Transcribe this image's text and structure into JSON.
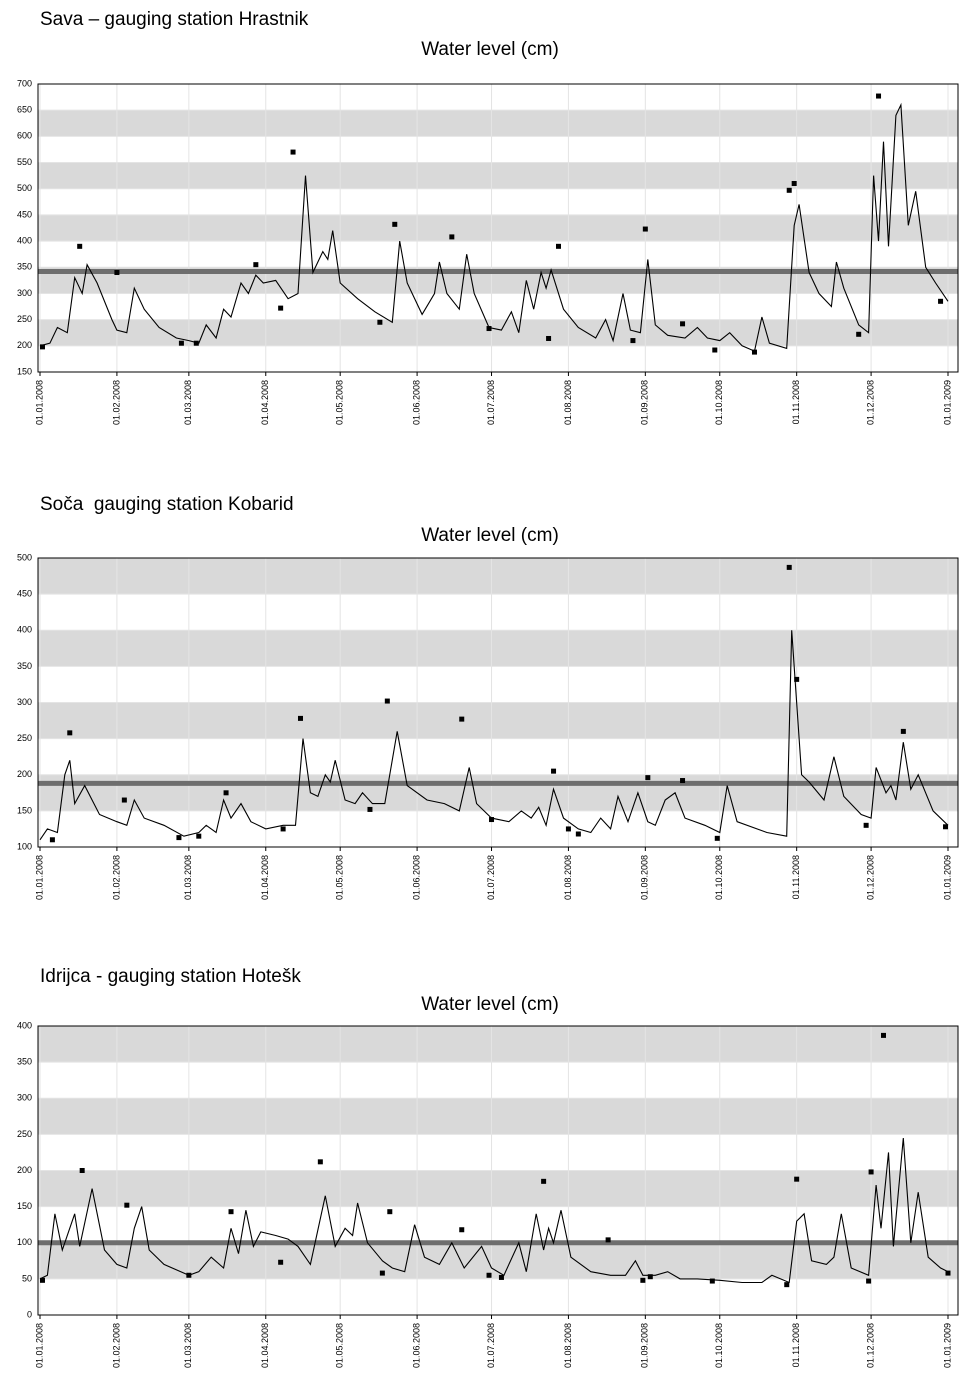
{
  "chart_data": [
    {
      "type": "line",
      "title": "Sava – gauging station Hrastnik",
      "subtitle": "Water level (cm)",
      "xlim": [
        "01.01.2008",
        "01.01.2009"
      ],
      "xticks": [
        "01.01.2008",
        "01.02.2008",
        "01.03.2008",
        "01.04.2008",
        "01.05.2008",
        "01.06.2008",
        "01.07.2008",
        "01.08.2008",
        "01.09.2008",
        "01.10.2008",
        "01.11.2008",
        "01.12.2008",
        "01.01.2009"
      ],
      "ylim": [
        150,
        700
      ],
      "yticks": [
        150,
        200,
        250,
        300,
        350,
        400,
        450,
        500,
        550,
        600,
        650,
        700
      ],
      "grid": true,
      "band_color": "#d9d9d9",
      "reference_line": {
        "value": 342,
        "color": "#6e6e6e"
      },
      "series": [
        {
          "type": "line",
          "color": "#000000",
          "x": [
            "01.01.2008",
            "05.01.2008",
            "08.01.2008",
            "12.01.2008",
            "15.01.2008",
            "18.01.2008",
            "20.01.2008",
            "24.01.2008",
            "30.01.2008",
            "01.02.2008",
            "05.02.2008",
            "08.02.2008",
            "12.02.2008",
            "18.02.2008",
            "25.02.2008",
            "01.03.2008",
            "05.03.2008",
            "08.03.2008",
            "12.03.2008",
            "15.03.2008",
            "18.03.2008",
            "22.03.2008",
            "25.03.2008",
            "28.03.2008",
            "31.03.2008",
            "05.04.2008",
            "10.04.2008",
            "14.04.2008",
            "17.04.2008",
            "20.04.2008",
            "24.04.2008",
            "26.04.2008",
            "28.04.2008",
            "01.05.2008",
            "08.05.2008",
            "15.05.2008",
            "22.05.2008",
            "25.05.2008",
            "28.05.2008",
            "03.06.2008",
            "08.06.2008",
            "10.06.2008",
            "13.06.2008",
            "18.06.2008",
            "21.06.2008",
            "24.06.2008",
            "30.06.2008",
            "05.07.2008",
            "09.07.2008",
            "12.07.2008",
            "15.07.2008",
            "18.07.2008",
            "21.07.2008",
            "23.07.2008",
            "25.07.2008",
            "30.07.2008",
            "05.08.2008",
            "12.08.2008",
            "16.08.2008",
            "19.08.2008",
            "23.08.2008",
            "26.08.2008",
            "30.08.2008",
            "02.09.2008",
            "05.09.2008",
            "10.09.2008",
            "17.09.2008",
            "22.09.2008",
            "26.09.2008",
            "01.10.2008",
            "05.10.2008",
            "10.10.2008",
            "15.10.2008",
            "18.10.2008",
            "21.10.2008",
            "28.10.2008",
            "31.10.2008",
            "02.11.2008",
            "06.11.2008",
            "10.11.2008",
            "15.11.2008",
            "17.11.2008",
            "20.11.2008",
            "26.11.2008",
            "30.11.2008",
            "02.12.2008",
            "04.12.2008",
            "06.12.2008",
            "08.12.2008",
            "11.12.2008",
            "13.12.2008",
            "16.12.2008",
            "19.12.2008",
            "23.12.2008",
            "27.12.2008",
            "01.01.2009"
          ],
          "values": [
            200,
            205,
            235,
            225,
            330,
            300,
            355,
            320,
            250,
            230,
            225,
            310,
            270,
            235,
            215,
            210,
            205,
            240,
            215,
            270,
            255,
            320,
            300,
            335,
            320,
            325,
            290,
            300,
            525,
            340,
            380,
            365,
            420,
            320,
            290,
            265,
            245,
            400,
            320,
            260,
            300,
            360,
            300,
            270,
            375,
            300,
            235,
            230,
            265,
            225,
            325,
            270,
            340,
            310,
            345,
            270,
            235,
            215,
            250,
            210,
            300,
            230,
            225,
            365,
            240,
            220,
            215,
            235,
            215,
            210,
            225,
            200,
            190,
            255,
            205,
            195,
            430,
            470,
            340,
            300,
            275,
            360,
            310,
            240,
            225,
            525,
            400,
            590,
            390,
            640,
            660,
            430,
            495,
            350,
            320,
            285
          ]
        },
        {
          "type": "scatter",
          "color": "#000000",
          "x": [
            "02.01.2008",
            "17.01.2008",
            "01.02.2008",
            "27.02.2008",
            "04.03.2008",
            "28.03.2008",
            "07.04.2008",
            "12.04.2008",
            "17.05.2008",
            "23.05.2008",
            "15.06.2008",
            "30.06.2008",
            "24.07.2008",
            "28.07.2008",
            "27.08.2008",
            "01.09.2008",
            "16.09.2008",
            "29.09.2008",
            "15.10.2008",
            "29.10.2008",
            "31.10.2008",
            "26.11.2008",
            "04.12.2008",
            "29.12.2008"
          ],
          "values": [
            198,
            390,
            340,
            205,
            205,
            355,
            272,
            570,
            245,
            432,
            408,
            233,
            214,
            390,
            210,
            423,
            242,
            192,
            188,
            497,
            510,
            222,
            677,
            285
          ]
        }
      ]
    },
    {
      "type": "line",
      "title": "Soča  gauging station Kobarid",
      "subtitle": "Water level (cm)",
      "xlim": [
        "01.01.2008",
        "01.01.2009"
      ],
      "xticks": [
        "01.01.2008",
        "01.02.2008",
        "01.03.2008",
        "01.04.2008",
        "01.05.2008",
        "01.06.2008",
        "01.07.2008",
        "01.08.2008",
        "01.09.2008",
        "01.10.2008",
        "01.11.2008",
        "01.12.2008",
        "01.01.2009"
      ],
      "ylim": [
        100,
        500
      ],
      "yticks": [
        100,
        150,
        200,
        250,
        300,
        350,
        400,
        450,
        500
      ],
      "grid": true,
      "band_color": "#d9d9d9",
      "reference_line": {
        "value": 188,
        "color": "#6e6e6e"
      },
      "series": [
        {
          "type": "line",
          "color": "#000000",
          "x": [
            "01.01.2008",
            "04.01.2008",
            "08.01.2008",
            "11.01.2008",
            "13.01.2008",
            "15.01.2008",
            "19.01.2008",
            "25.01.2008",
            "01.02.2008",
            "05.02.2008",
            "08.02.2008",
            "12.02.2008",
            "20.02.2008",
            "28.02.2008",
            "05.03.2008",
            "08.03.2008",
            "12.03.2008",
            "15.03.2008",
            "18.03.2008",
            "22.03.2008",
            "26.03.2008",
            "01.04.2008",
            "08.04.2008",
            "13.04.2008",
            "16.04.2008",
            "19.04.2008",
            "22.04.2008",
            "25.04.2008",
            "27.04.2008",
            "29.04.2008",
            "03.05.2008",
            "07.05.2008",
            "10.05.2008",
            "14.05.2008",
            "19.05.2008",
            "24.05.2008",
            "28.05.2008",
            "05.06.2008",
            "12.06.2008",
            "18.06.2008",
            "22.06.2008",
            "25.06.2008",
            "01.07.2008",
            "08.07.2008",
            "13.07.2008",
            "17.07.2008",
            "20.07.2008",
            "23.07.2008",
            "26.07.2008",
            "30.07.2008",
            "05.08.2008",
            "10.08.2008",
            "14.08.2008",
            "18.08.2008",
            "21.08.2008",
            "25.08.2008",
            "29.08.2008",
            "02.09.2008",
            "05.09.2008",
            "09.09.2008",
            "13.09.2008",
            "17.09.2008",
            "25.09.2008",
            "01.10.2008",
            "04.10.2008",
            "08.10.2008",
            "20.10.2008",
            "28.10.2008",
            "30.10.2008",
            "03.11.2008",
            "06.11.2008",
            "12.11.2008",
            "16.11.2008",
            "20.11.2008",
            "27.11.2008",
            "01.12.2008",
            "03.12.2008",
            "07.12.2008",
            "09.12.2008",
            "11.12.2008",
            "14.12.2008",
            "17.12.2008",
            "20.12.2008",
            "26.12.2008",
            "01.01.2009"
          ],
          "values": [
            110,
            125,
            120,
            200,
            220,
            160,
            185,
            145,
            135,
            130,
            165,
            140,
            130,
            115,
            120,
            130,
            120,
            165,
            140,
            160,
            135,
            125,
            130,
            130,
            250,
            175,
            170,
            200,
            190,
            220,
            165,
            160,
            175,
            160,
            160,
            260,
            185,
            165,
            160,
            150,
            210,
            160,
            140,
            135,
            150,
            140,
            155,
            130,
            180,
            140,
            125,
            120,
            140,
            125,
            170,
            135,
            175,
            135,
            130,
            165,
            175,
            140,
            130,
            120,
            185,
            135,
            120,
            115,
            400,
            200,
            190,
            165,
            225,
            170,
            145,
            140,
            210,
            175,
            185,
            165,
            245,
            180,
            200,
            150,
            130
          ]
        },
        {
          "type": "scatter",
          "color": "#000000",
          "x": [
            "06.01.2008",
            "13.01.2008",
            "04.02.2008",
            "26.02.2008",
            "05.03.2008",
            "16.03.2008",
            "08.04.2008",
            "15.04.2008",
            "13.05.2008",
            "20.05.2008",
            "19.06.2008",
            "01.07.2008",
            "26.07.2008",
            "01.08.2008",
            "05.08.2008",
            "02.09.2008",
            "16.09.2008",
            "30.09.2008",
            "29.10.2008",
            "01.11.2008",
            "29.11.2008",
            "14.12.2008",
            "31.12.2008"
          ],
          "values": [
            110,
            258,
            165,
            113,
            115,
            175,
            125,
            278,
            152,
            302,
            277,
            138,
            205,
            125,
            118,
            196,
            192,
            112,
            487,
            332,
            130,
            260,
            128
          ]
        }
      ]
    },
    {
      "type": "line",
      "title": "Idrijca - gauging station Hotešk",
      "subtitle": "Water level (cm)",
      "xlim": [
        "01.01.2008",
        "01.01.2009"
      ],
      "xticks": [
        "01.01.2008",
        "01.02.2008",
        "01.03.2008",
        "01.04.2008",
        "01.05.2008",
        "01.06.2008",
        "01.07.2008",
        "01.08.2008",
        "01.09.2008",
        "01.10.2008",
        "01.11.2008",
        "01.12.2008",
        "01.01.2009"
      ],
      "ylim": [
        0,
        400
      ],
      "yticks": [
        0,
        50,
        100,
        150,
        200,
        250,
        300,
        350,
        400
      ],
      "grid": true,
      "band_color": "#d9d9d9",
      "reference_line": {
        "value": 100,
        "color": "#6e6e6e"
      },
      "series": [
        {
          "type": "line",
          "color": "#000000",
          "x": [
            "01.01.2008",
            "04.01.2008",
            "07.01.2008",
            "10.01.2008",
            "15.01.2008",
            "17.01.2008",
            "22.01.2008",
            "27.01.2008",
            "01.02.2008",
            "05.02.2008",
            "08.02.2008",
            "11.02.2008",
            "14.02.2008",
            "20.02.2008",
            "01.03.2008",
            "05.03.2008",
            "10.03.2008",
            "15.03.2008",
            "18.03.2008",
            "21.03.2008",
            "24.03.2008",
            "27.03.2008",
            "30.03.2008",
            "05.04.2008",
            "10.04.2008",
            "14.04.2008",
            "19.04.2008",
            "25.04.2008",
            "29.04.2008",
            "03.05.2008",
            "06.05.2008",
            "08.05.2008",
            "12.05.2008",
            "18.05.2008",
            "22.05.2008",
            "27.05.2008",
            "31.05.2008",
            "04.06.2008",
            "10.06.2008",
            "15.06.2008",
            "20.06.2008",
            "27.06.2008",
            "01.07.2008",
            "06.07.2008",
            "12.07.2008",
            "15.07.2008",
            "19.07.2008",
            "22.07.2008",
            "24.07.2008",
            "26.07.2008",
            "29.07.2008",
            "02.08.2008",
            "10.08.2008",
            "18.08.2008",
            "24.08.2008",
            "28.08.2008",
            "31.08.2008",
            "05.09.2008",
            "10.09.2008",
            "15.09.2008",
            "22.09.2008",
            "01.10.2008",
            "10.10.2008",
            "18.10.2008",
            "22.10.2008",
            "29.10.2008",
            "01.11.2008",
            "04.11.2008",
            "07.11.2008",
            "13.11.2008",
            "16.11.2008",
            "19.11.2008",
            "23.11.2008",
            "30.11.2008",
            "03.12.2008",
            "05.12.2008",
            "08.12.2008",
            "10.12.2008",
            "14.12.2008",
            "17.12.2008",
            "20.12.2008",
            "24.12.2008",
            "29.12.2008",
            "01.01.2009"
          ],
          "values": [
            50,
            55,
            140,
            90,
            140,
            95,
            175,
            90,
            70,
            65,
            120,
            150,
            90,
            70,
            55,
            60,
            80,
            65,
            120,
            85,
            145,
            95,
            115,
            110,
            105,
            95,
            70,
            165,
            95,
            120,
            110,
            155,
            100,
            75,
            65,
            60,
            125,
            80,
            70,
            100,
            65,
            95,
            65,
            55,
            100,
            60,
            140,
            90,
            120,
            100,
            145,
            80,
            60,
            55,
            55,
            75,
            55,
            55,
            60,
            50,
            50,
            48,
            45,
            45,
            55,
            45,
            130,
            140,
            75,
            70,
            80,
            140,
            65,
            55,
            180,
            120,
            225,
            95,
            245,
            100,
            170,
            80,
            65,
            60
          ]
        },
        {
          "type": "scatter",
          "color": "#000000",
          "x": [
            "02.01.2008",
            "18.01.2008",
            "05.02.2008",
            "01.03.2008",
            "18.03.2008",
            "07.04.2008",
            "23.04.2008",
            "18.05.2008",
            "21.05.2008",
            "19.06.2008",
            "30.06.2008",
            "05.07.2008",
            "22.07.2008",
            "17.08.2008",
            "31.08.2008",
            "03.09.2008",
            "28.09.2008",
            "28.10.2008",
            "01.11.2008",
            "30.11.2008",
            "01.12.2008",
            "06.12.2008",
            "01.01.2009"
          ],
          "values": [
            48,
            200,
            152,
            55,
            143,
            73,
            212,
            58,
            143,
            118,
            55,
            52,
            185,
            104,
            48,
            53,
            47,
            42,
            188,
            47,
            198,
            387,
            58
          ]
        }
      ]
    }
  ]
}
